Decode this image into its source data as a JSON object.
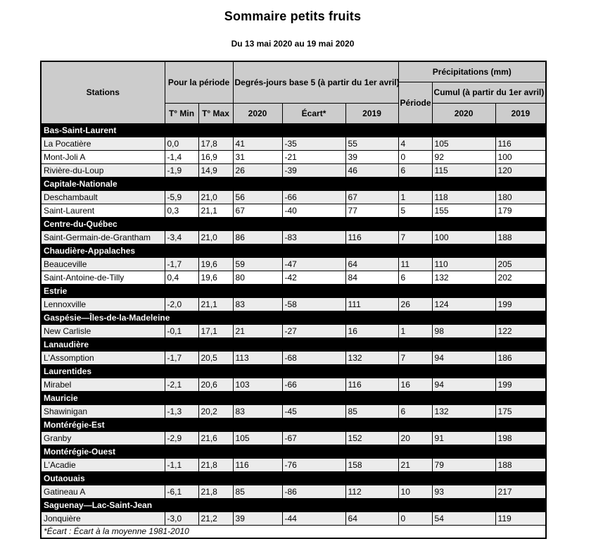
{
  "title": "Sommaire petits fruits",
  "subtitle": "Du 13 mai 2020 au 19 mai 2020",
  "colors": {
    "header_bg": "#CCCCCC",
    "region_bg": "#000000",
    "region_fg": "#FFFFFF",
    "zebra_bg": "#ECECEC"
  },
  "table": {
    "headers": {
      "stations": "Stations",
      "pour_la_periode": "Pour la période",
      "degres_jours": "Degrés-jours base 5 (à partir du 1er avril)",
      "precipitations": "Précipitations (mm)",
      "periode": "Période",
      "cumul": "Cumul (à partir du 1er avril)",
      "t_min": "T° Min",
      "t_max": "T° Max",
      "dj_2020": "2020",
      "ecart": "Écart*",
      "dj_2019": "2019",
      "cumul_2020": "2020",
      "cumul_2019": "2019"
    },
    "regions": [
      {
        "name": "Bas-Saint-Laurent",
        "stations": [
          {
            "name": "La Pocatière",
            "values": [
              "0,0",
              "17,8",
              "41",
              "-35",
              "55",
              "4",
              "105",
              "116"
            ]
          },
          {
            "name": "Mont-Joli A",
            "values": [
              "-1,4",
              "16,9",
              "31",
              "-21",
              "39",
              "0",
              "92",
              "100"
            ]
          },
          {
            "name": "Rivière-du-Loup",
            "values": [
              "-1,9",
              "14,9",
              "26",
              "-39",
              "46",
              "6",
              "115",
              "120"
            ]
          }
        ]
      },
      {
        "name": "Capitale-Nationale",
        "stations": [
          {
            "name": "Deschambault",
            "values": [
              "-5,9",
              "21,0",
              "56",
              "-66",
              "67",
              "1",
              "118",
              "180"
            ]
          },
          {
            "name": "Saint-Laurent",
            "values": [
              "0,3",
              "21,1",
              "67",
              "-40",
              "77",
              "5",
              "155",
              "179"
            ]
          }
        ]
      },
      {
        "name": "Centre-du-Québec",
        "stations": [
          {
            "name": "Saint-Germain-de-Grantham",
            "values": [
              "-3,4",
              "21,0",
              "86",
              "-83",
              "116",
              "7",
              "100",
              "188"
            ]
          }
        ]
      },
      {
        "name": "Chaudière-Appalaches",
        "stations": [
          {
            "name": "Beauceville",
            "values": [
              "-1,7",
              "19,6",
              "59",
              "-47",
              "64",
              "11",
              "110",
              "205"
            ]
          },
          {
            "name": "Saint-Antoine-de-Tilly",
            "values": [
              "0,4",
              "19,6",
              "80",
              "-42",
              "84",
              "6",
              "132",
              "202"
            ]
          }
        ]
      },
      {
        "name": "Estrie",
        "stations": [
          {
            "name": "Lennoxville",
            "values": [
              "-2,0",
              "21,1",
              "83",
              "-58",
              "111",
              "26",
              "124",
              "199"
            ]
          }
        ]
      },
      {
        "name": "Gaspésie—Îles-de-la-Madeleine",
        "stations": [
          {
            "name": "New Carlisle",
            "values": [
              "-0,1",
              "17,1",
              "21",
              "-27",
              "16",
              "1",
              "98",
              "122"
            ]
          }
        ]
      },
      {
        "name": "Lanaudière",
        "stations": [
          {
            "name": "L'Assomption",
            "values": [
              "-1,7",
              "20,5",
              "113",
              "-68",
              "132",
              "7",
              "94",
              "186"
            ]
          }
        ]
      },
      {
        "name": "Laurentides",
        "stations": [
          {
            "name": "Mirabel",
            "values": [
              "-2,1",
              "20,6",
              "103",
              "-66",
              "116",
              "16",
              "94",
              "199"
            ]
          }
        ]
      },
      {
        "name": "Mauricie",
        "stations": [
          {
            "name": "Shawinigan",
            "values": [
              "-1,3",
              "20,2",
              "83",
              "-45",
              "85",
              "6",
              "132",
              "175"
            ]
          }
        ]
      },
      {
        "name": "Montérégie-Est",
        "stations": [
          {
            "name": "Granby",
            "values": [
              "-2,9",
              "21,6",
              "105",
              "-67",
              "152",
              "20",
              "91",
              "198"
            ]
          }
        ]
      },
      {
        "name": "Montérégie-Ouest",
        "stations": [
          {
            "name": "L'Acadie",
            "values": [
              "-1,1",
              "21,8",
              "116",
              "-76",
              "158",
              "21",
              "79",
              "188"
            ]
          }
        ]
      },
      {
        "name": "Outaouais",
        "stations": [
          {
            "name": "Gatineau A",
            "values": [
              "-6,1",
              "21,8",
              "85",
              "-86",
              "112",
              "10",
              "93",
              "217"
            ]
          }
        ]
      },
      {
        "name": "Saguenay—Lac-Saint-Jean",
        "stations": [
          {
            "name": "Jonquière",
            "values": [
              "-3,0",
              "21,2",
              "39",
              "-44",
              "64",
              "0",
              "54",
              "119"
            ]
          }
        ]
      }
    ],
    "footnote": "*Écart : Écart à la moyenne 1981-2010"
  }
}
